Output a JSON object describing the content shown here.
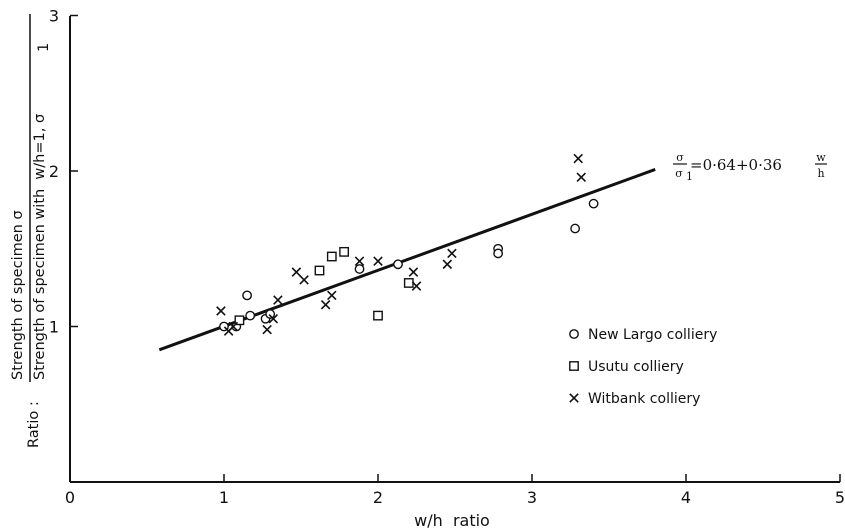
{
  "chart_data": {
    "type": "scatter",
    "xlabel": "w/h  ratio",
    "ylabel": {
      "prefix": "Ratio :",
      "numerator": "Strength of specimen σ",
      "denominator": "Strength of specimen with  w/h=1, σ"
    },
    "xlim": [
      0,
      5
    ],
    "ylim": [
      0,
      3
    ],
    "x_ticks": [
      "0",
      "1",
      "2",
      "3",
      "4",
      "5"
    ],
    "y_ticks": [
      "1",
      "2",
      "3"
    ],
    "grid": false,
    "legend_position": "lower-right",
    "series": [
      {
        "name": "New Largo colliery",
        "marker": "circle",
        "points": [
          [
            1.0,
            1.0
          ],
          [
            1.08,
            1.0
          ],
          [
            1.15,
            1.2
          ],
          [
            1.17,
            1.07
          ],
          [
            1.27,
            1.05
          ],
          [
            1.3,
            1.08
          ],
          [
            1.88,
            1.37
          ],
          [
            2.13,
            1.4
          ],
          [
            2.78,
            1.5
          ],
          [
            2.78,
            1.47
          ],
          [
            3.28,
            1.63
          ],
          [
            3.4,
            1.79
          ]
        ]
      },
      {
        "name": "Usutu colliery",
        "marker": "square",
        "points": [
          [
            1.1,
            1.04
          ],
          [
            1.62,
            1.36
          ],
          [
            1.7,
            1.45
          ],
          [
            1.78,
            1.48
          ],
          [
            2.0,
            1.07
          ],
          [
            2.2,
            1.28
          ]
        ]
      },
      {
        "name": "Witbank colliery",
        "marker": "x",
        "points": [
          [
            0.98,
            1.1
          ],
          [
            1.03,
            0.97
          ],
          [
            1.06,
            1.0
          ],
          [
            1.28,
            0.98
          ],
          [
            1.32,
            1.05
          ],
          [
            1.35,
            1.17
          ],
          [
            1.47,
            1.35
          ],
          [
            1.52,
            1.3
          ],
          [
            1.66,
            1.14
          ],
          [
            1.7,
            1.2
          ],
          [
            1.88,
            1.42
          ],
          [
            2.0,
            1.42
          ],
          [
            2.23,
            1.35
          ],
          [
            2.25,
            1.26
          ],
          [
            2.45,
            1.4
          ],
          [
            2.48,
            1.47
          ],
          [
            3.3,
            2.08
          ],
          [
            3.32,
            1.96
          ]
        ]
      }
    ],
    "fit_line": {
      "x": [
        0.58,
        3.8
      ],
      "y": [
        0.85,
        2.01
      ]
    },
    "equation": {
      "lhs_num": "σ",
      "lhs_den": "σ",
      "rhs": "=0·64+0·36",
      "frac_num": "w",
      "frac_den": "h"
    },
    "legend": [
      {
        "marker": "circle",
        "label": "New Largo colliery"
      },
      {
        "marker": "square",
        "label": "Usutu  colliery"
      },
      {
        "marker": "x",
        "label": "Witbank  colliery"
      }
    ],
    "colors": {
      "ink": "#111111",
      "background": "#ffffff"
    }
  }
}
